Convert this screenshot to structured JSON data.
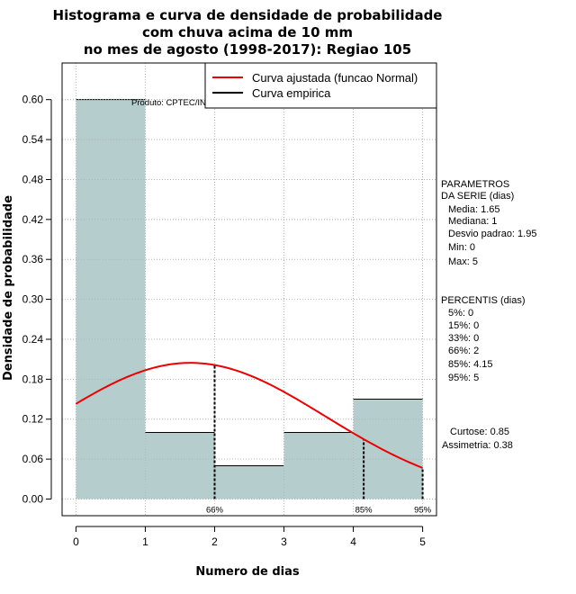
{
  "chart_data": {
    "type": "bar",
    "title_lines": [
      "Histograma e curva de densidade de probabilidade",
      "com chuva acima de 10 mm",
      "no mes de agosto (1998-2017): Regiao 105"
    ],
    "xlabel": "Numero de dias",
    "ylabel": "Densidade de probabilidade",
    "xlim": [
      -0.2,
      5.2
    ],
    "ylim": [
      -0.025,
      0.655
    ],
    "x_ticks": [
      "0",
      "1",
      "2",
      "3",
      "4",
      "5"
    ],
    "y_ticks": [
      "0.00",
      "0.06",
      "0.12",
      "0.18",
      "0.24",
      "0.30",
      "0.36",
      "0.42",
      "0.48",
      "0.54",
      "0.60"
    ],
    "bins": [
      {
        "from": 0,
        "to": 1,
        "value": 0.6
      },
      {
        "from": 1,
        "to": 2,
        "value": 0.1
      },
      {
        "from": 2,
        "to": 3,
        "value": 0.05
      },
      {
        "from": 3,
        "to": 4,
        "value": 0.1
      },
      {
        "from": 4,
        "to": 5,
        "value": 0.15
      }
    ],
    "normal_curve": {
      "mean": 1.65,
      "sd": 1.95,
      "x_from": 0,
      "x_to": 5
    },
    "percentile_markers": [
      {
        "x": 2,
        "label": "66%"
      },
      {
        "x": 4.15,
        "label": "85%"
      },
      {
        "x": 5,
        "label": "95%"
      }
    ],
    "legend": {
      "placement": "top-right",
      "entries": [
        {
          "label": "Curva ajustada (funcao Normal)",
          "color": "#ee0000"
        },
        {
          "label": "Curva empirica",
          "color": "#000000"
        }
      ]
    },
    "watermark": "Produto: CPTEC/INPE",
    "grid": true,
    "colors": {
      "bar_fill": "#b5cdcd",
      "curve": "#ee0000",
      "grid": "#b0b0b0"
    }
  },
  "stats_panel": {
    "parametros_lines": [
      "PARAMETROS",
      "DA SERIE (dias)",
      "Media: 1.65",
      "Mediana: 1",
      "Desvio padrao: 1.95",
      "Min: 0",
      "Max: 5"
    ],
    "percentis_lines": [
      "PERCENTIS (dias)",
      "5%: 0",
      "15%: 0",
      "33%: 0",
      "66%: 2",
      "85%: 4.15",
      "95%: 5"
    ],
    "shape_lines": [
      "Curtose: 0.85",
      "Assimetria: 0.38"
    ]
  }
}
